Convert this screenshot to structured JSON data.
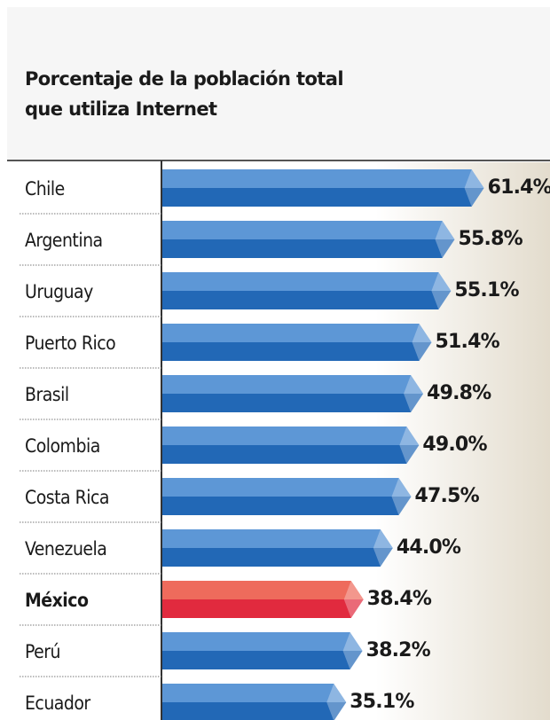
{
  "chart_data": {
    "type": "barh",
    "title": [
      "Porcentaje de la población total",
      "que utiliza Internet"
    ],
    "categories": [
      "Chile",
      "Argentina",
      "Uruguay",
      "Puerto Rico",
      "Brasil",
      "Colombia",
      "Costa Rica",
      "Venezuela",
      "México",
      "Perú",
      "Ecuador"
    ],
    "values": [
      61.4,
      55.8,
      55.1,
      51.4,
      49.8,
      49.0,
      47.5,
      44.0,
      38.4,
      38.2,
      35.1
    ],
    "value_labels": [
      "61.4%",
      "55.8%",
      "55.1%",
      "51.4%",
      "49.8%",
      "49.0%",
      "47.5%",
      "44.0%",
      "38.4%",
      "38.2%",
      "35.1%"
    ],
    "colors": [
      "#5d97d6",
      "#2268b6"
    ],
    "highlight": "México",
    "highlight_colors": [
      "#ee6b5c",
      "#e12a3e"
    ],
    "xlim": [
      0,
      74
    ]
  }
}
